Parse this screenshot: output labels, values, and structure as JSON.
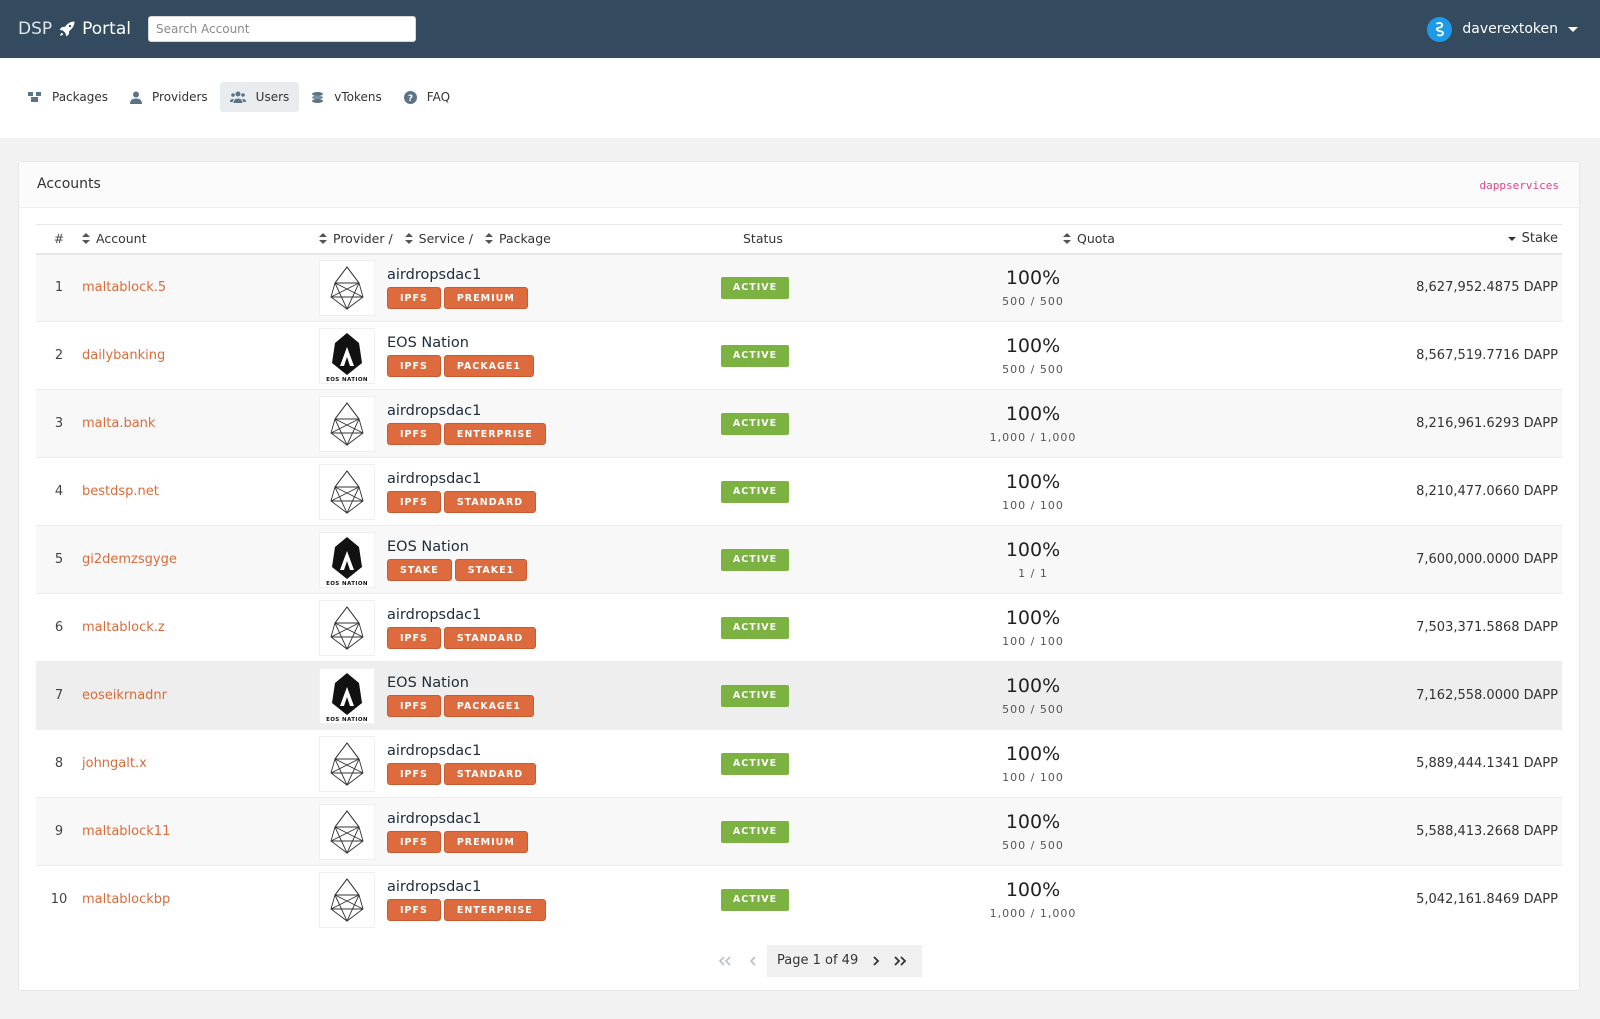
{
  "header": {
    "brand_left": "DSP",
    "brand_right": "Portal",
    "search_placeholder": "Search Account",
    "username": "daverextoken"
  },
  "nav": {
    "items": [
      {
        "label": "Packages",
        "icon": "boxes-icon"
      },
      {
        "label": "Providers",
        "icon": "user-icon"
      },
      {
        "label": "Users",
        "icon": "users-icon",
        "active": true
      },
      {
        "label": "vTokens",
        "icon": "coins-icon"
      },
      {
        "label": "FAQ",
        "icon": "question-circle-icon"
      }
    ]
  },
  "card": {
    "title": "Accounts",
    "code": "dappservices"
  },
  "table": {
    "headers": {
      "num": "#",
      "account": "Account",
      "provider": "Provider /",
      "service": "Service /",
      "package": "Package",
      "status": "Status",
      "quota": "Quota",
      "stake": "Stake"
    },
    "rows": [
      {
        "num": "1",
        "account": "maltablock.5",
        "provider": "airdropsdac1",
        "logo": "eos",
        "tags": [
          "IPFS",
          "PREMIUM"
        ],
        "status": "ACTIVE",
        "pct": "100%",
        "frac": "500 / 500",
        "stake": "8,627,952.4875 DAPP"
      },
      {
        "num": "2",
        "account": "dailybanking",
        "provider": "EOS Nation",
        "logo": "eosnation",
        "tags": [
          "IPFS",
          "PACKAGE1"
        ],
        "status": "ACTIVE",
        "pct": "100%",
        "frac": "500 / 500",
        "stake": "8,567,519.7716 DAPP"
      },
      {
        "num": "3",
        "account": "malta.bank",
        "provider": "airdropsdac1",
        "logo": "eos",
        "tags": [
          "IPFS",
          "ENTERPRISE"
        ],
        "status": "ACTIVE",
        "pct": "100%",
        "frac": "1,000 / 1,000",
        "stake": "8,216,961.6293 DAPP"
      },
      {
        "num": "4",
        "account": "bestdsp.net",
        "provider": "airdropsdac1",
        "logo": "eos",
        "tags": [
          "IPFS",
          "STANDARD"
        ],
        "status": "ACTIVE",
        "pct": "100%",
        "frac": "100 / 100",
        "stake": "8,210,477.0660 DAPP"
      },
      {
        "num": "5",
        "account": "gi2demzsgyge",
        "provider": "EOS Nation",
        "logo": "eosnation",
        "tags": [
          "STAKE",
          "STAKE1"
        ],
        "status": "ACTIVE",
        "pct": "100%",
        "frac": "1 / 1",
        "stake": "7,600,000.0000 DAPP"
      },
      {
        "num": "6",
        "account": "maltablock.z",
        "provider": "airdropsdac1",
        "logo": "eos",
        "tags": [
          "IPFS",
          "STANDARD"
        ],
        "status": "ACTIVE",
        "pct": "100%",
        "frac": "100 / 100",
        "stake": "7,503,371.5868 DAPP"
      },
      {
        "num": "7",
        "account": "eoseikrnadnr",
        "provider": "EOS Nation",
        "logo": "eosnation",
        "tags": [
          "IPFS",
          "PACKAGE1"
        ],
        "status": "ACTIVE",
        "pct": "100%",
        "frac": "500 / 500",
        "stake": "7,162,558.0000 DAPP"
      },
      {
        "num": "8",
        "account": "johngalt.x",
        "provider": "airdropsdac1",
        "logo": "eos",
        "tags": [
          "IPFS",
          "STANDARD"
        ],
        "status": "ACTIVE",
        "pct": "100%",
        "frac": "100 / 100",
        "stake": "5,889,444.1341 DAPP"
      },
      {
        "num": "9",
        "account": "maltablock11",
        "provider": "airdropsdac1",
        "logo": "eos",
        "tags": [
          "IPFS",
          "PREMIUM"
        ],
        "status": "ACTIVE",
        "pct": "100%",
        "frac": "500 / 500",
        "stake": "5,588,413.2668 DAPP"
      },
      {
        "num": "10",
        "account": "maltablockbp",
        "provider": "airdropsdac1",
        "logo": "eos",
        "tags": [
          "IPFS",
          "ENTERPRISE"
        ],
        "status": "ACTIVE",
        "pct": "100%",
        "frac": "1,000 / 1,000",
        "stake": "5,042,161.8469 DAPP"
      }
    ]
  },
  "pager": {
    "label": "Page 1 of 49"
  },
  "colors": {
    "topbar": "#344a5e",
    "accent": "#db6b3b",
    "tag": "#dd6b3e",
    "status": "#7bb241",
    "code": "#e83e8c"
  }
}
